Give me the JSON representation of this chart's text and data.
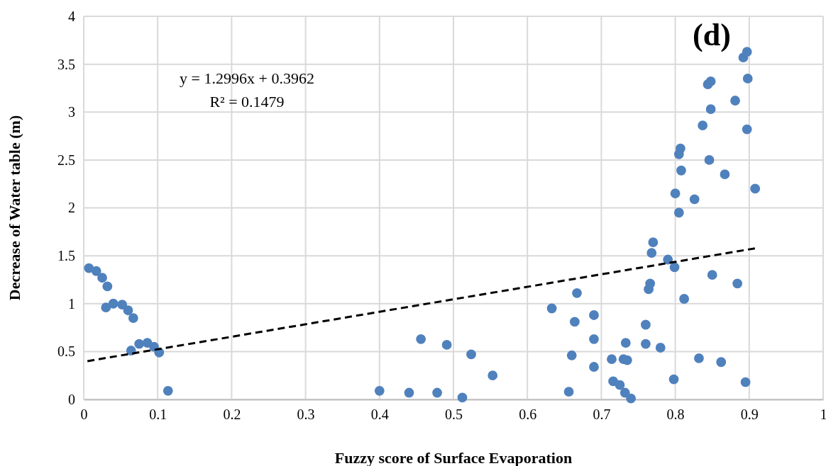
{
  "chart_data": {
    "type": "scatter",
    "title": "(d)",
    "xlabel": "Fuzzy score of Surface Evaporation",
    "ylabel": "Decrease of Water table (m)",
    "xlim": [
      0,
      1
    ],
    "xticks": [
      0,
      0.1,
      0.2,
      0.3,
      0.4,
      0.5,
      0.6,
      0.7,
      0.8,
      0.9,
      1
    ],
    "ylim": [
      0,
      4
    ],
    "yticks": [
      0,
      0.5,
      1,
      1.5,
      2,
      2.5,
      3,
      3.5,
      4
    ],
    "grid": true,
    "annotations": [
      "y = 1.2996x + 0.3962",
      "R² = 0.1479"
    ],
    "series": [
      {
        "color": "#4f81bd",
        "marker": "circle",
        "x": [
          0.007,
          0.017,
          0.025,
          0.032,
          0.03,
          0.04,
          0.052,
          0.06,
          0.067,
          0.064,
          0.075,
          0.086,
          0.095,
          0.102,
          0.114,
          0.4,
          0.44,
          0.478,
          0.512,
          0.456,
          0.491,
          0.524,
          0.553,
          0.633,
          0.656,
          0.66,
          0.664,
          0.667,
          0.69,
          0.69,
          0.69,
          0.714,
          0.716,
          0.725,
          0.73,
          0.732,
          0.733,
          0.735,
          0.74,
          0.76,
          0.76,
          0.764,
          0.766,
          0.768,
          0.77,
          0.78,
          0.79,
          0.799,
          0.798,
          0.8,
          0.805,
          0.805,
          0.807,
          0.808,
          0.812,
          0.826,
          0.832,
          0.837,
          0.844,
          0.846,
          0.848,
          0.848,
          0.85,
          0.862,
          0.867,
          0.881,
          0.884,
          0.892,
          0.895,
          0.897,
          0.897,
          0.898,
          0.908
        ],
        "values": [
          1.37,
          1.34,
          1.27,
          1.18,
          0.96,
          1.0,
          0.99,
          0.93,
          0.85,
          0.51,
          0.58,
          0.59,
          0.55,
          0.49,
          0.09,
          0.09,
          0.07,
          0.07,
          0.02,
          0.63,
          0.57,
          0.47,
          0.25,
          0.95,
          0.08,
          0.46,
          0.81,
          1.11,
          0.88,
          0.63,
          0.34,
          0.42,
          0.19,
          0.15,
          0.42,
          0.07,
          0.59,
          0.41,
          0.01,
          0.78,
          0.58,
          1.15,
          1.21,
          1.53,
          1.64,
          0.54,
          1.46,
          1.38,
          0.21,
          2.15,
          1.95,
          2.56,
          2.62,
          2.39,
          1.05,
          2.09,
          0.43,
          2.86,
          3.29,
          2.5,
          3.32,
          3.03,
          1.3,
          0.39,
          2.35,
          3.12,
          1.21,
          3.57,
          0.18,
          3.63,
          2.82,
          3.35,
          2.2
        ]
      },
      {
        "type": "line",
        "color": "#000000",
        "line_style": "dashed",
        "marker": "none",
        "x": [
          0.005,
          0.91
        ],
        "values": [
          0.4,
          1.58
        ]
      }
    ]
  }
}
